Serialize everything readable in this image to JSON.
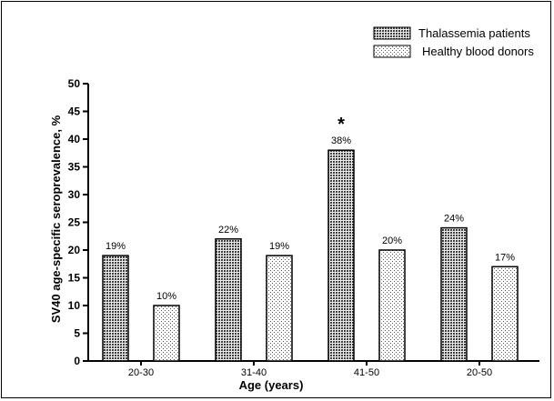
{
  "chart_data": {
    "type": "bar",
    "categories": [
      "20-30",
      "31-40",
      "41-50",
      "20-50"
    ],
    "series": [
      {
        "name": "Thalassemia patients",
        "values": [
          19,
          22,
          38,
          24
        ],
        "labels": [
          "19%",
          "22%",
          "38%",
          "24%"
        ],
        "pattern": "crosshatch"
      },
      {
        "name": "Healthy blood donors",
        "values": [
          10,
          19,
          20,
          17
        ],
        "labels": [
          "10%",
          "19%",
          "20%",
          "17%"
        ],
        "pattern": "dots"
      }
    ],
    "xlabel": "Age (years)",
    "ylabel": "SV40 age-specific seroprevalence, %",
    "ylim": [
      0,
      50
    ],
    "yticks": [
      0,
      5,
      10,
      15,
      20,
      25,
      30,
      35,
      40,
      45,
      50
    ],
    "legend_position": "top-right",
    "annotations": [
      {
        "text": "*",
        "category": "41-50"
      }
    ]
  }
}
